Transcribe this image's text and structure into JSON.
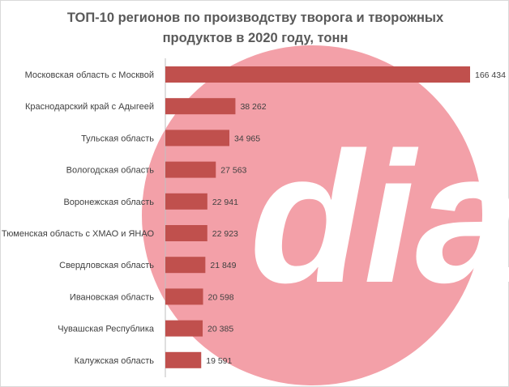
{
  "chart_data": {
    "type": "bar",
    "orientation": "horizontal",
    "title": "ТОП-10 регионов по производству творога и творожных продуктов в 2020 году, тонн",
    "categories": [
      "Московская область с Москвой",
      "Краснодарский край  с Адыгеей",
      "Тульская область",
      "Вологодская область",
      "Воронежская область",
      "Тюменская область с ХМАО и ЯНАО",
      "Свердловская область",
      "Ивановская область",
      "Чувашская Республика",
      "Калужская область"
    ],
    "values": [
      166434,
      38262,
      34965,
      27563,
      22941,
      22923,
      21849,
      20598,
      20385,
      19591
    ],
    "value_labels": [
      "166 434",
      "38 262",
      "34 965",
      "27 563",
      "22 941",
      "22 923",
      "21 849",
      "20 598",
      "20 385",
      "19 591"
    ],
    "xlim": [
      0,
      166434
    ],
    "grid": false,
    "legend": "none",
    "bar_color": "#c0504d"
  },
  "watermark": {
    "text": "dia",
    "circle_color": "#f3a0a8"
  }
}
